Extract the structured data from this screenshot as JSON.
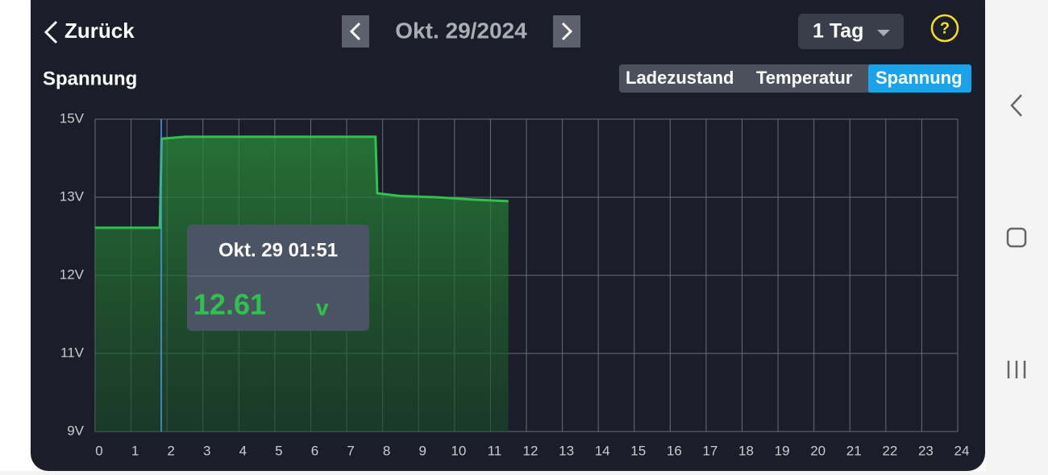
{
  "header": {
    "back": "Zurück",
    "date": "Okt. 29/2024",
    "range": "1 Tag",
    "help": "?"
  },
  "tabs": [
    "Ladezustand",
    "Temperatur",
    "Spannung"
  ],
  "tooltip": {
    "time": "Okt. 29 01:51",
    "value": "12.61",
    "unit": "v"
  },
  "chart_data": {
    "type": "line",
    "title": "Spannung",
    "x": [
      0,
      1.8,
      1.85,
      2.5,
      7.8,
      7.85,
      8.5,
      9.5,
      10.5,
      11.5
    ],
    "series": [
      {
        "color": "#2fc24f",
        "values": [
          12.61,
          12.61,
          14.5,
          14.55,
          14.55,
          13.1,
          13.03,
          13.0,
          12.97,
          12.95
        ]
      }
    ],
    "xlim": [
      0,
      24
    ],
    "xticks": [
      0,
      1,
      2,
      3,
      4,
      5,
      6,
      7,
      8,
      9,
      10,
      11,
      12,
      13,
      14,
      15,
      16,
      17,
      18,
      19,
      20,
      21,
      22,
      23,
      24
    ],
    "ylim": [
      9,
      15
    ],
    "yticks": [
      {
        "value": 9,
        "label": "9V"
      },
      {
        "value": 11,
        "label": "11V"
      },
      {
        "value": 12,
        "label": "12V"
      },
      {
        "value": 13,
        "label": "13V"
      },
      {
        "value": 15,
        "label": "15V"
      }
    ],
    "grid": true
  }
}
